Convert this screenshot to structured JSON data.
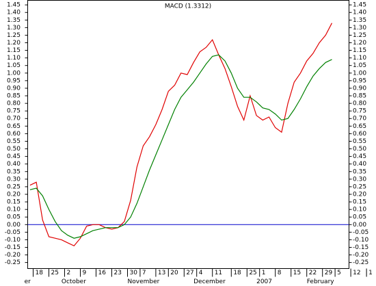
{
  "chart_data": {
    "type": "line",
    "title": "MACD (1.3312)",
    "x": [
      -1,
      1,
      3,
      5,
      7,
      9,
      11,
      13,
      15,
      17,
      19,
      21,
      23,
      25,
      27,
      29,
      31,
      33,
      35,
      37,
      39,
      41,
      43,
      45,
      47,
      49,
      51,
      53,
      55,
      57,
      59,
      61,
      63,
      65,
      67,
      69,
      71,
      73,
      75,
      77,
      79,
      81,
      83,
      85,
      87,
      89,
      91,
      93,
      95
    ],
    "series": [
      {
        "color": "#e00000",
        "values": [
          0.26,
          0.28,
          0.03,
          -0.08,
          -0.09,
          -0.1,
          -0.12,
          -0.14,
          -0.09,
          -0.01,
          0.0,
          0.0,
          -0.02,
          -0.03,
          -0.02,
          0.02,
          0.16,
          0.38,
          0.52,
          0.58,
          0.66,
          0.76,
          0.88,
          0.92,
          1.0,
          0.99,
          1.07,
          1.14,
          1.17,
          1.22,
          1.12,
          1.03,
          0.91,
          0.78,
          0.69,
          0.85,
          0.72,
          0.69,
          0.71,
          0.64,
          0.61,
          0.8,
          0.94,
          1.0,
          1.08,
          1.13,
          1.2,
          1.25,
          1.33
        ]
      },
      {
        "color": "#008000",
        "values": [
          0.23,
          0.24,
          0.19,
          0.1,
          0.02,
          -0.04,
          -0.07,
          -0.09,
          -0.08,
          -0.06,
          -0.04,
          -0.03,
          -0.02,
          -0.02,
          -0.02,
          0.0,
          0.05,
          0.14,
          0.25,
          0.36,
          0.46,
          0.56,
          0.66,
          0.76,
          0.84,
          0.89,
          0.94,
          1.0,
          1.06,
          1.11,
          1.12,
          1.08,
          1.0,
          0.9,
          0.84,
          0.84,
          0.81,
          0.77,
          0.76,
          0.73,
          0.69,
          0.7,
          0.76,
          0.83,
          0.91,
          0.98,
          1.03,
          1.07,
          1.09
        ]
      }
    ],
    "reference_line": {
      "value": 0,
      "color": "#0000cc"
    },
    "xlim": [
      -1.74,
      100.43
    ],
    "ylim": [
      -0.29,
      1.48
    ],
    "xticks": [
      0,
      5,
      10,
      15,
      20,
      25,
      30,
      34,
      39,
      43,
      48,
      52,
      57,
      63,
      68,
      72,
      77,
      82,
      87,
      92,
      96,
      101,
      106
    ],
    "xtick_labels": [
      "18",
      "25",
      "2",
      "9",
      "16",
      "23",
      "30",
      "7",
      "13",
      "20",
      "27",
      "4",
      "11",
      "18",
      "25",
      "1",
      "8",
      "15",
      "22",
      "29",
      "5",
      "12",
      "1"
    ],
    "month_labels": [
      {
        "value": -2.8,
        "label": "er"
      },
      {
        "value": 9,
        "label": "October"
      },
      {
        "value": 30,
        "label": "November"
      },
      {
        "value": 51,
        "label": "December"
      },
      {
        "value": 71,
        "label": "2007"
      },
      {
        "value": 87,
        "label": "February"
      }
    ],
    "yticks": [
      {
        "value": -0.25,
        "label": "-0.25"
      },
      {
        "value": -0.2,
        "label": "-0.20"
      },
      {
        "value": -0.15,
        "label": "-0.15"
      },
      {
        "value": -0.1,
        "label": "-0.10"
      },
      {
        "value": -0.05,
        "label": "-0.05"
      },
      {
        "value": 0,
        "label": "0.00"
      },
      {
        "value": 0.05,
        "label": "0.05"
      },
      {
        "value": 0.1,
        "label": "0.10"
      },
      {
        "value": 0.15,
        "label": "0.15"
      },
      {
        "value": 0.2,
        "label": "0.20"
      },
      {
        "value": 0.25,
        "label": "0.25"
      },
      {
        "value": 0.3,
        "label": "0.30"
      },
      {
        "value": 0.35,
        "label": "0.35"
      },
      {
        "value": 0.4,
        "label": "0.40"
      },
      {
        "value": 0.45,
        "label": "0.45"
      },
      {
        "value": 0.5,
        "label": "0.50"
      },
      {
        "value": 0.55,
        "label": "0.55"
      },
      {
        "value": 0.6,
        "label": "0.60"
      },
      {
        "value": 0.65,
        "label": "0.65"
      },
      {
        "value": 0.7,
        "label": "0.70"
      },
      {
        "value": 0.75,
        "label": "0.75"
      },
      {
        "value": 0.8,
        "label": "0.80"
      },
      {
        "value": 0.85,
        "label": "0.85"
      },
      {
        "value": 0.9,
        "label": "0.90"
      },
      {
        "value": 0.95,
        "label": "0.95"
      },
      {
        "value": 1.0,
        "label": "1.00"
      },
      {
        "value": 1.05,
        "label": "1.05"
      },
      {
        "value": 1.1,
        "label": "1.10"
      },
      {
        "value": 1.15,
        "label": "1.15"
      },
      {
        "value": 1.2,
        "label": "1.20"
      },
      {
        "value": 1.25,
        "label": "1.25"
      },
      {
        "value": 1.3,
        "label": "1.30"
      },
      {
        "value": 1.35,
        "label": "1.35"
      },
      {
        "value": 1.4,
        "label": "1.40"
      },
      {
        "value": 1.45,
        "label": "1.45"
      }
    ]
  }
}
